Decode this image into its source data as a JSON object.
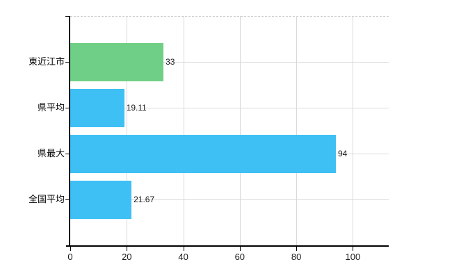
{
  "chart_data": {
    "type": "bar",
    "orientation": "horizontal",
    "title": "",
    "categories": [
      "東近江市",
      "県平均",
      "県最大",
      "全国平均"
    ],
    "values": [
      33,
      19.11,
      94,
      21.67
    ],
    "value_labels": [
      "33",
      "19.11",
      "94",
      "21.67"
    ],
    "bar_colors": [
      "#6fcf86",
      "#3ec0f4",
      "#3ec0f4",
      "#3ec0f4"
    ],
    "x_tick_labels": [
      "0",
      "20",
      "40",
      "60",
      "80",
      "100"
    ],
    "x_tick_values": [
      0,
      20,
      40,
      60,
      80,
      100
    ],
    "xlim": [
      0,
      112.7
    ],
    "grid": true,
    "legend": "none",
    "colors": {
      "highlight_bar": "#6fcf86",
      "default_bar": "#3ec0f4",
      "axis": "#000000",
      "gridline": "#d9d9d9",
      "top_border": "#c9c9c9",
      "text": "#1a1a1a"
    }
  }
}
